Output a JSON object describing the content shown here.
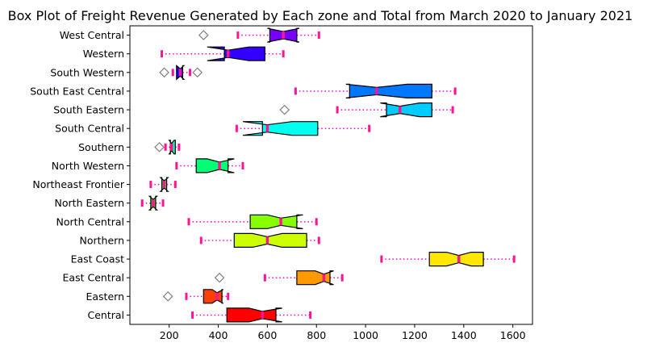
{
  "chart_data": {
    "type": "boxplot",
    "orientation": "horizontal",
    "notched": true,
    "title": "Box Plot of Freight Revenue Generated by Each zone and Total from March 2020 to January 2021",
    "xlabel": "",
    "ylabel": "",
    "xlim": [
      40,
      1680
    ],
    "xticks": [
      200,
      400,
      600,
      800,
      1000,
      1200,
      1400,
      1600
    ],
    "grid": false,
    "whisker_style": "dotted",
    "colors": {
      "whisker": "#ff00cc",
      "cap": "#ff1493",
      "median": "#ff1493",
      "box_edge": "#000000",
      "flier": "#808080"
    },
    "boxes": [
      {
        "label": "Central",
        "color": "#ff0000",
        "whislo": 295,
        "q1": 435,
        "med": 580,
        "q3": 635,
        "whishi": 775,
        "notch": [
          525,
          660
        ],
        "fliers": []
      },
      {
        "label": "Eastern",
        "color": "#ff4000",
        "whislo": 270,
        "q1": 340,
        "med": 395,
        "q3": 415,
        "whishi": 440,
        "notch": [
          375,
          420
        ],
        "fliers": [
          195
        ]
      },
      {
        "label": "East Central",
        "color": "#ff9900",
        "whislo": 590,
        "q1": 720,
        "med": 830,
        "q3": 855,
        "whishi": 905,
        "notch": [
          795,
          870
        ],
        "fliers": [
          405
        ]
      },
      {
        "label": "East Coast",
        "color": "#ffe800",
        "whislo": 1065,
        "q1": 1260,
        "med": 1380,
        "q3": 1480,
        "whishi": 1605,
        "notch": [
          1330,
          1430
        ],
        "fliers": []
      },
      {
        "label": "Northern",
        "color": "#ccff00",
        "whislo": 330,
        "q1": 465,
        "med": 600,
        "q3": 760,
        "whishi": 810,
        "notch": [
          540,
          660
        ],
        "fliers": []
      },
      {
        "label": "North Central",
        "color": "#88ff00",
        "whislo": 280,
        "q1": 530,
        "med": 655,
        "q3": 720,
        "whishi": 800,
        "notch": [
          600,
          745
        ],
        "fliers": []
      },
      {
        "label": "North Eastern",
        "color": "#22ff00",
        "whislo": 90,
        "q1": 125,
        "med": 135,
        "q3": 145,
        "whishi": 175,
        "notch": [
          120,
          150
        ],
        "fliers": []
      },
      {
        "label": "Northeast Frontier",
        "color": "#00ff33",
        "whislo": 125,
        "q1": 170,
        "med": 180,
        "q3": 190,
        "whishi": 225,
        "notch": [
          165,
          195
        ],
        "fliers": []
      },
      {
        "label": "North Western",
        "color": "#00ff77",
        "whislo": 230,
        "q1": 310,
        "med": 405,
        "q3": 440,
        "whishi": 500,
        "notch": [
          355,
          465
        ],
        "fliers": []
      },
      {
        "label": "Southern",
        "color": "#00ffbb",
        "whislo": 185,
        "q1": 205,
        "med": 210,
        "q3": 225,
        "whishi": 240,
        "notch": [
          200,
          220
        ],
        "fliers": [
          160
        ]
      },
      {
        "label": "South Central",
        "color": "#00ffee",
        "whislo": 475,
        "q1": 580,
        "med": 600,
        "q3": 805,
        "whishi": 1015,
        "notch": [
          500,
          700
        ],
        "fliers": []
      },
      {
        "label": "South Eastern",
        "color": "#00ccff",
        "whislo": 885,
        "q1": 1085,
        "med": 1140,
        "q3": 1270,
        "whishi": 1355,
        "notch": [
          1060,
          1220
        ],
        "fliers": [
          670
        ]
      },
      {
        "label": "South East Central",
        "color": "#0077ff",
        "whislo": 715,
        "q1": 935,
        "med": 1045,
        "q3": 1270,
        "whishi": 1365,
        "notch": [
          920,
          1170
        ],
        "fliers": []
      },
      {
        "label": "South Western",
        "color": "#1100ff",
        "whislo": 215,
        "q1": 230,
        "med": 245,
        "q3": 255,
        "whishi": 285,
        "notch": [
          230,
          260
        ],
        "fliers": [
          180,
          315
        ]
      },
      {
        "label": "Western",
        "color": "#3300ff",
        "whislo": 170,
        "q1": 425,
        "med": 440,
        "q3": 590,
        "whishi": 665,
        "notch": [
          355,
          525
        ],
        "fliers": []
      },
      {
        "label": "West Central",
        "color": "#7700ff",
        "whislo": 480,
        "q1": 610,
        "med": 665,
        "q3": 720,
        "whishi": 810,
        "notch": [
          600,
          730
        ],
        "fliers": [
          340
        ]
      }
    ]
  }
}
